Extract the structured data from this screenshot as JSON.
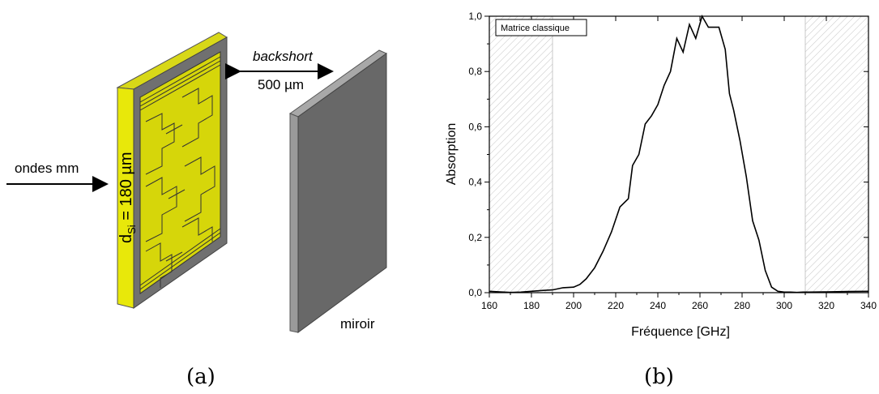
{
  "panel_a": {
    "caption": "(a)",
    "input_label": "ondes mm",
    "thickness_label_prefix": "d",
    "thickness_label_sub": "Si",
    "thickness_label_value": " = 180 µm",
    "backshort_label": "backshort",
    "distance_label": "500 µm",
    "mirror_label": "miroir",
    "colors": {
      "absorber": "#e3e308",
      "pattern": "#d4d404",
      "frame": "#6f6f6f",
      "mirror_front": "#6a6a6a",
      "mirror_edge": "#a0a0a0"
    }
  },
  "panel_b": {
    "caption": "(b)",
    "chart_data": {
      "type": "line",
      "title": "",
      "xlabel": "Fréquence [GHz]",
      "ylabel": "Absorption",
      "legend": "Matrice classique",
      "legend_position": "top-left",
      "xlim": [
        160,
        340
      ],
      "ylim": [
        0,
        1.0
      ],
      "x_ticks": [
        "160",
        "180",
        "200",
        "220",
        "240",
        "260",
        "280",
        "300",
        "320",
        "340"
      ],
      "y_ticks": [
        "0,0",
        "0,2",
        "0,4",
        "0,6",
        "0,8",
        "1,0"
      ],
      "hatched_regions": [
        [
          160,
          190
        ],
        [
          310,
          340
        ]
      ],
      "series": [
        {
          "name": "Matrice classique",
          "color": "#000000",
          "x": [
            160,
            165,
            170,
            175,
            180,
            185,
            190,
            195,
            200,
            203,
            206,
            210,
            214,
            218,
            222,
            226,
            228,
            231,
            234,
            237,
            240,
            243,
            246,
            249,
            252,
            255,
            258,
            261,
            264,
            266,
            269,
            272,
            274,
            276,
            279,
            282,
            285,
            288,
            291,
            294,
            297,
            300,
            303,
            306,
            309,
            312,
            320,
            330,
            340
          ],
          "y": [
            0.005,
            0.003,
            0.001,
            0.002,
            0.005,
            0.008,
            0.01,
            0.018,
            0.02,
            0.03,
            0.05,
            0.09,
            0.15,
            0.22,
            0.31,
            0.34,
            0.46,
            0.5,
            0.61,
            0.64,
            0.68,
            0.75,
            0.8,
            0.92,
            0.87,
            0.97,
            0.92,
            1.0,
            0.96,
            0.96,
            0.96,
            0.88,
            0.72,
            0.66,
            0.55,
            0.42,
            0.26,
            0.19,
            0.08,
            0.02,
            0.005,
            0.002,
            0.002,
            0.001,
            0.002,
            0.002,
            0.003,
            0.004,
            0.005
          ]
        }
      ]
    }
  }
}
